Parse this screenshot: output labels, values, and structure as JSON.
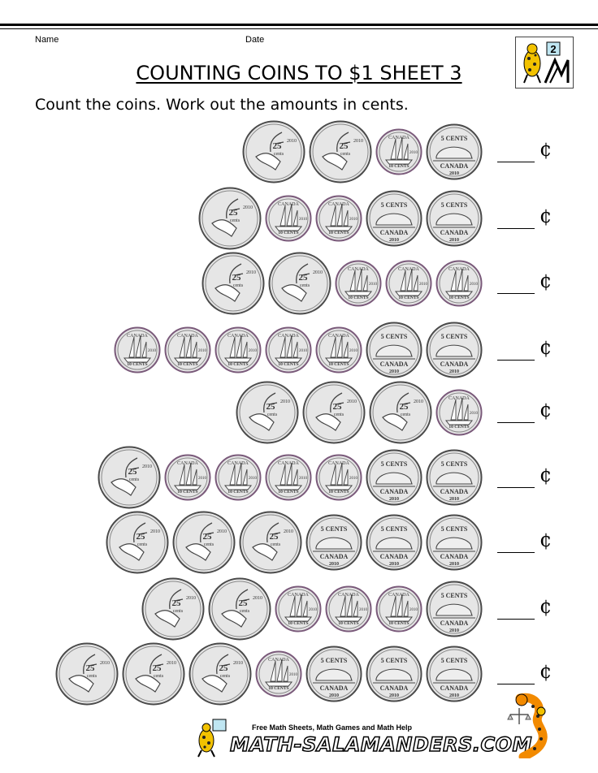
{
  "header": {
    "name_label": "Name",
    "date_label": "Date",
    "title": "COUNTING COINS TO $1 SHEET 3",
    "instructions": "Count the coins. Work out the amounts in cents.",
    "logo_badge": "2"
  },
  "rows": [
    {
      "coins": [
        "quarter",
        "quarter",
        "dime",
        "nickel"
      ],
      "answer": "",
      "cent_symbol": "¢"
    },
    {
      "coins": [
        "quarter",
        "dime",
        "dime",
        "nickel",
        "nickel"
      ],
      "answer": "",
      "cent_symbol": "¢"
    },
    {
      "coins": [
        "quarter",
        "quarter",
        "dime",
        "dime",
        "dime"
      ],
      "answer": "",
      "cent_symbol": "¢"
    },
    {
      "coins": [
        "dime",
        "dime",
        "dime",
        "dime",
        "dime",
        "nickel",
        "nickel"
      ],
      "answer": "",
      "cent_symbol": "¢"
    },
    {
      "coins": [
        "quarter",
        "quarter",
        "quarter",
        "dime"
      ],
      "answer": "",
      "cent_symbol": "¢"
    },
    {
      "coins": [
        "quarter",
        "dime",
        "dime",
        "dime",
        "dime",
        "nickel",
        "nickel"
      ],
      "answer": "",
      "cent_symbol": "¢"
    },
    {
      "coins": [
        "quarter",
        "quarter",
        "quarter",
        "nickel",
        "nickel",
        "nickel"
      ],
      "answer": "",
      "cent_symbol": "¢"
    },
    {
      "coins": [
        "quarter",
        "quarter",
        "dime",
        "dime",
        "dime",
        "nickel"
      ],
      "answer": "",
      "cent_symbol": "¢"
    },
    {
      "coins": [
        "quarter",
        "quarter",
        "quarter",
        "dime",
        "nickel",
        "nickel",
        "nickel"
      ],
      "answer": "",
      "cent_symbol": "¢"
    }
  ],
  "coin_text": {
    "quarter_value": "25",
    "quarter_unit": "cents",
    "dime_value": "10",
    "dime_unit": "CENTS",
    "nickel_value": "5",
    "nickel_unit": "CENTS",
    "country": "CANADA",
    "year": "2010"
  },
  "footer": {
    "tagline": "Free Math Sheets, Math Games and Math Help",
    "url": "MATH-SALAMANDERS.COM"
  },
  "colors": {
    "coin_fill": "#e6e6e6",
    "coin_rim": "#4a4a4a",
    "dime_rim": "#7a5a7a",
    "salamander_yellow": "#f2c200",
    "salamander_spots": "#222222",
    "salamander_orange": "#f28a00"
  },
  "icons": {
    "logo": "salamander-math-logo",
    "footer_logo": "salamander-logo",
    "mascot": "salamander-scales-icon"
  }
}
